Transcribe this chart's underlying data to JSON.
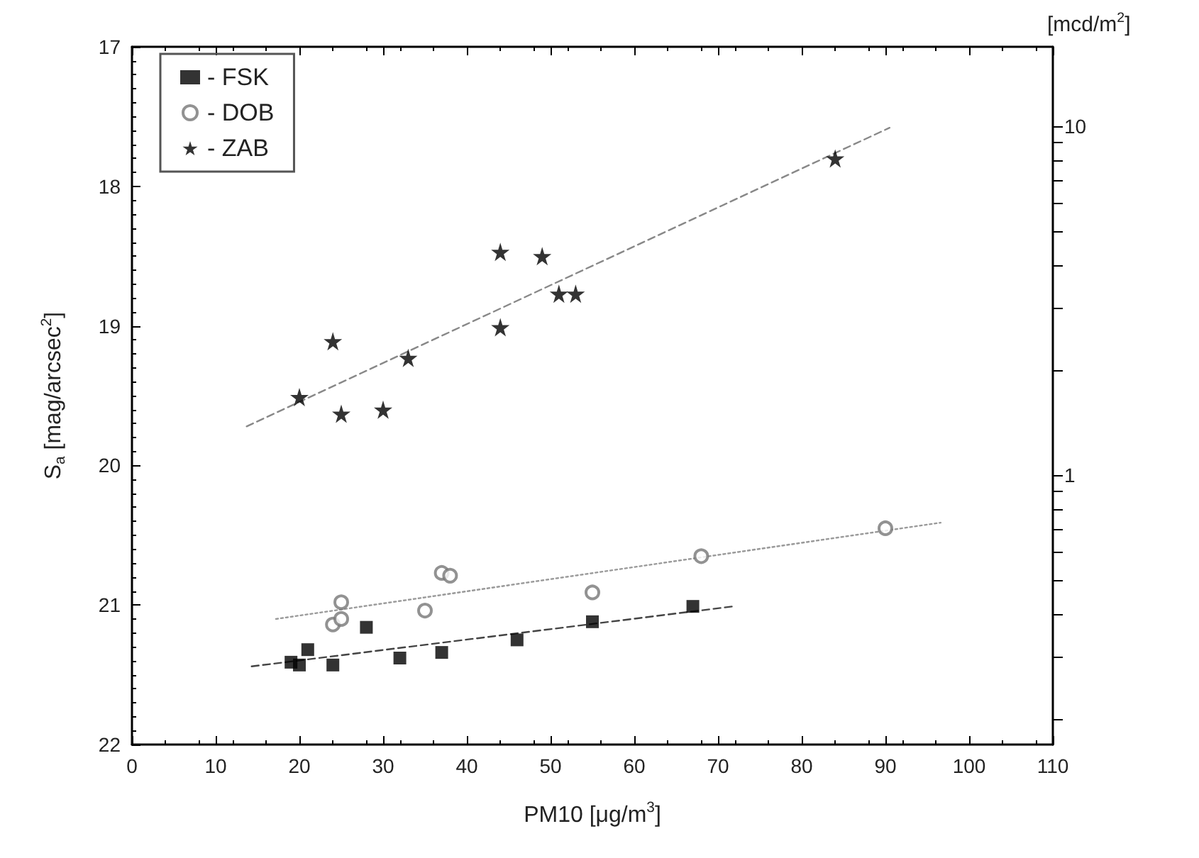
{
  "chart_data": {
    "type": "scatter",
    "xlabel": "PM10 [μg/m$^{3}$]",
    "ylabel": "S$_{a}$ [mag/arcsec$^{2}$]",
    "y2label": "[mcd/m$^{2}$]",
    "xlim": [
      0,
      110
    ],
    "xticks": [
      0,
      10,
      20,
      30,
      40,
      50,
      60,
      70,
      80,
      90,
      100,
      110
    ],
    "ylim": [
      22,
      17
    ],
    "yticks": [
      17,
      18,
      19,
      20,
      21,
      22
    ],
    "y2lim": [
      0.169,
      16.9
    ],
    "y2ticks": [
      {
        "value": 0.2,
        "label": null
      },
      {
        "value": 0.3,
        "label": null
      },
      {
        "value": 0.4,
        "label": null
      },
      {
        "value": 0.5,
        "label": null
      },
      {
        "value": 0.6,
        "label": null
      },
      {
        "value": 0.7,
        "label": null
      },
      {
        "value": 0.8,
        "label": null
      },
      {
        "value": 0.9,
        "label": null
      },
      1,
      {
        "value": 2,
        "label": null
      },
      {
        "value": 3,
        "label": null
      },
      {
        "value": 4,
        "label": null
      },
      {
        "value": 5,
        "label": null
      },
      {
        "value": 6,
        "label": null
      },
      {
        "value": 7,
        "label": null
      },
      {
        "value": 8,
        "label": null
      },
      {
        "value": 9,
        "label": null
      },
      10
    ],
    "grid": false,
    "legend": "top left",
    "log": "y2",
    "series": [
      {
        "name": "- FSK",
        "color": "#000000",
        "marker": "square",
        "x": [
          19,
          20,
          21,
          24,
          28,
          32,
          37,
          46,
          55,
          67
        ],
        "values": [
          21.41,
          21.43,
          21.32,
          21.43,
          21.16,
          21.38,
          21.34,
          21.25,
          21.12,
          21.01
        ]
      },
      {
        "name": "- DOB",
        "color": "#777777",
        "marker": "circle",
        "x": [
          24,
          25,
          25,
          35,
          37,
          38,
          55,
          68,
          90
        ],
        "values": [
          21.14,
          21.1,
          20.98,
          21.04,
          20.77,
          20.79,
          20.91,
          20.65,
          20.45
        ]
      },
      {
        "name": "- ZAB",
        "color": "#000000",
        "marker": "star",
        "x": [
          20,
          24,
          25,
          30,
          33,
          44,
          44,
          49,
          51,
          53,
          84
        ],
        "values": [
          19.51,
          19.11,
          19.63,
          19.6,
          19.23,
          18.47,
          19.01,
          18.5,
          18.77,
          18.77,
          17.8
        ]
      },
      {
        "type": "line",
        "color": "#444444",
        "line_style": "dashed",
        "marker": "none",
        "x": [
          14.3,
          71.8
        ],
        "values": [
          21.44,
          21.01
        ]
      },
      {
        "type": "line",
        "color": "#999999",
        "line_style": "dotted",
        "marker": "none",
        "x": [
          17.2,
          96.6
        ],
        "values": [
          21.1,
          20.41
        ]
      },
      {
        "type": "line",
        "color": "#888888",
        "line_style": "dashed",
        "marker": "none",
        "x": [
          13.7,
          90.5
        ],
        "values": [
          19.72,
          17.58
        ]
      }
    ]
  }
}
